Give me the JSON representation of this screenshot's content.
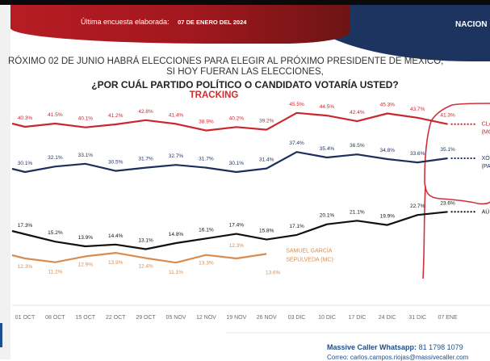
{
  "header": {
    "last_survey_label": "Última encuesta elaborada:",
    "last_survey_date": "07 DE ENERO DEL 2024",
    "region_label": "NACION"
  },
  "question": {
    "line1": "RÓXIMO 02 DE JUNIO HABRÁ ELECCIONES PARA ELEGIR AL PRÓXIMO PRESIDENTE DE MÉXICO,",
    "line2": "SI HOY FUERAN LAS ELECCIONES,",
    "line3": "¿POR CUÁL PARTIDO POLÍTICO O CANDIDATO VOTARÍA USTED?",
    "line4": "TRACKING"
  },
  "footer": {
    "whatsapp_label": "Massive Caller Whatsapp:",
    "whatsapp_number": "81 1798 1079",
    "email_line": "Correo: carlos.campos.riojas@massivecaller.com"
  },
  "colors": {
    "claudia": "#c8282e",
    "xochitl": "#1c2f5c",
    "aun_no": "#111111",
    "samuel": "#d98c4f",
    "annotation": "#d0303a"
  },
  "chart_data": {
    "type": "line",
    "title": "TRACKING",
    "xlabel": "",
    "ylabel": "",
    "ylim": [
      0,
      50
    ],
    "grid": false,
    "legend": "right (inline labels)",
    "x": [
      "01 OCT",
      "08 OCT",
      "15 OCT",
      "22 OCT",
      "29 OCT",
      "05 NOV",
      "12 NOV",
      "19 NOV",
      "26 NOV",
      "03 DIC",
      "10 DIC",
      "17 DIC",
      "24 DIC",
      "31 DIC",
      "07 ENE"
    ],
    "series": [
      {
        "name": "CLAUDIA (MORENA)",
        "label_lines": [
          "CLAUD",
          "(MORE"
        ],
        "color_key": "claudia",
        "values": [
          40.3,
          41.5,
          40.1,
          41.2,
          42.8,
          41.4,
          38.9,
          40.2,
          39.2,
          45.5,
          44.5,
          42.4,
          45.3,
          43.7,
          41.3
        ],
        "data_labels": [
          "40.3%",
          "41.5%",
          "40.1%",
          "41.2%",
          "42.8%",
          "41.4%",
          "38.9%",
          "40.2%",
          "39.2%",
          "45.5%",
          "44.5%",
          "42.4%",
          "45.3%",
          "43.7%",
          "41.3%"
        ]
      },
      {
        "name": "XÓCHITL (PAN...)",
        "label_lines": [
          "XÓ",
          "(PA"
        ],
        "color_key": "xochitl",
        "values": [
          30.1,
          32.1,
          33.1,
          30.5,
          31.7,
          32.7,
          31.7,
          30.1,
          31.4,
          37.4,
          35.4,
          36.5,
          34.8,
          33.6,
          35.1
        ],
        "data_labels": [
          "30.1%",
          "32.1%",
          "33.1%",
          "30.5%",
          "31.7%",
          "32.7%",
          "31.7%",
          "30.1%",
          "31.4%",
          "37.4%",
          "35.4%",
          "36.5%",
          "34.8%",
          "33.6%",
          "35.1%"
        ]
      },
      {
        "name": "AÚN NO...",
        "label_lines": [
          "AÚ"
        ],
        "color_key": "aun_no",
        "values": [
          17.3,
          15.2,
          13.9,
          14.4,
          13.1,
          14.8,
          16.1,
          17.4,
          15.8,
          17.1,
          20.1,
          21.1,
          19.9,
          22.7,
          23.6
        ],
        "data_labels": [
          "17.3%",
          "15.2%",
          "13.9%",
          "14.4%",
          "13.1%",
          "14.8%",
          "16.1%",
          "17.4%",
          "15.8%",
          "17.1%",
          "20.1%",
          "21.1%",
          "19.9%",
          "22.7%",
          "23.6%"
        ]
      },
      {
        "name": "SAMUEL GARCÍA SEPÚLVEDA (MC)",
        "label_lines": [
          "SAMUEL GARCÍA",
          "SEPÚLVEDA (MC)"
        ],
        "color_key": "samuel",
        "values": [
          12.3,
          11.2,
          12.9,
          13.9,
          12.4,
          11.1,
          13.3,
          12.3,
          13.6,
          null,
          null,
          null,
          null,
          null,
          null
        ],
        "data_labels": [
          "12.3%",
          "11.2%",
          "12.9%",
          "13.9%",
          "12.4%",
          "11.1%",
          "13.3%",
          "12.3%",
          "13.6%"
        ]
      }
    ]
  }
}
